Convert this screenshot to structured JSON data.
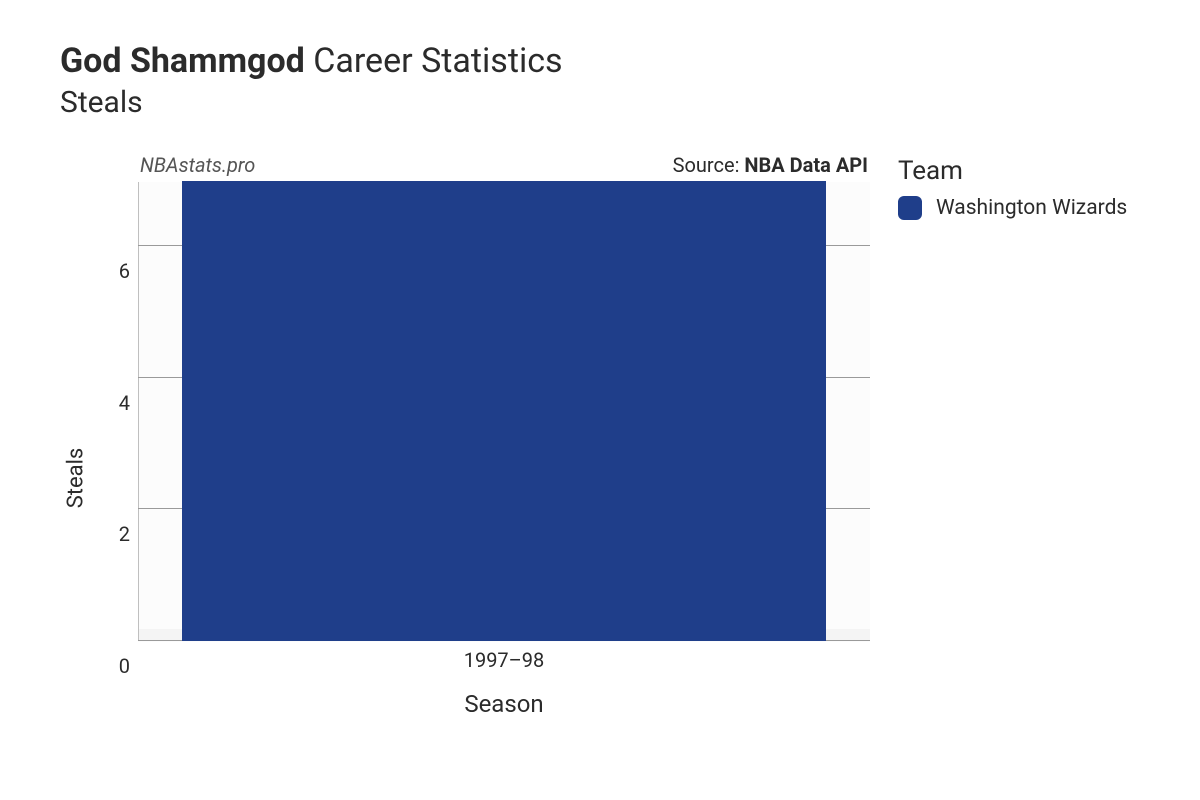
{
  "title": {
    "player_name": "God Shammgod",
    "suffix": " Career Statistics",
    "subtitle": "Steals"
  },
  "subheader": {
    "left_watermark": "NBAstats.pro",
    "source_prefix": "Source: ",
    "source_name": "NBA Data API"
  },
  "chart": {
    "type": "bar",
    "categories": [
      "1997–98"
    ],
    "values": [
      7
    ],
    "bar_colors": [
      "#1f3e8a"
    ],
    "bar_width_pct": 88,
    "background_color": "#fcfcfc",
    "grid_color": "#9a9a9a",
    "left_spine_color": "#bfbfbf",
    "ylim": [
      0,
      7
    ],
    "yticks": [
      0,
      2,
      4,
      6
    ],
    "ylabel": "Steals",
    "xlabel": "Season",
    "tick_fontsize_px": 20,
    "axis_label_fontsize_px": 24
  },
  "legend": {
    "title": "Team",
    "items": [
      {
        "label": "Washington Wizards",
        "color": "#1f3e8a"
      }
    ]
  }
}
